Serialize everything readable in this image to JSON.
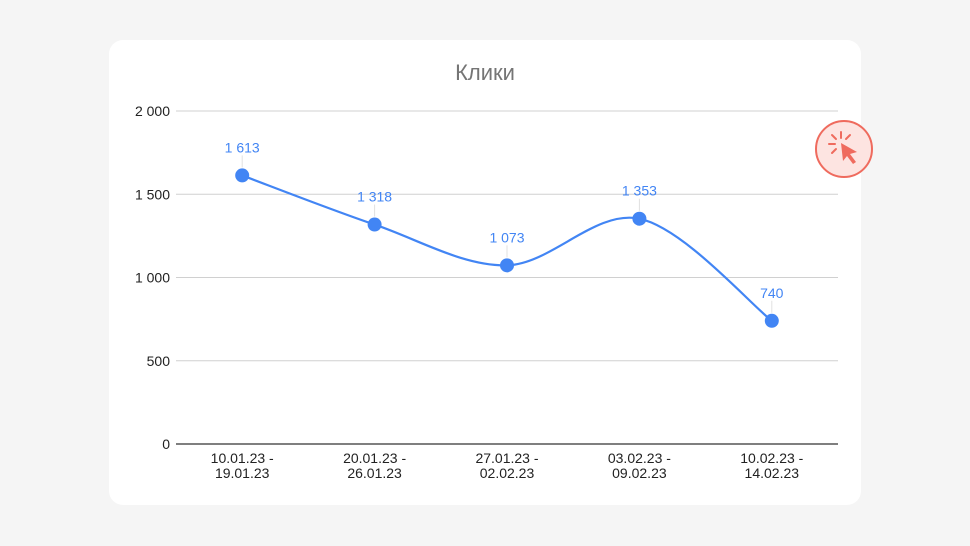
{
  "chart_data": {
    "type": "line",
    "title": "Клики",
    "xlabel": "",
    "ylabel": "",
    "categories": [
      [
        "10.01.23 -",
        "19.01.23"
      ],
      [
        "20.01.23 -",
        "26.01.23"
      ],
      [
        "27.01.23 -",
        "02.02.23"
      ],
      [
        "03.02.23 -",
        "09.02.23"
      ],
      [
        "10.02.23 -",
        "14.02.23"
      ]
    ],
    "values": [
      1613,
      1318,
      1073,
      1353,
      740
    ],
    "data_labels": [
      "1 613",
      "1 318",
      "1 073",
      "1 353",
      "740"
    ],
    "yticks": [
      0,
      500,
      1000,
      1500,
      2000
    ],
    "ytick_labels": [
      "0",
      "500",
      "1 000",
      "1 500",
      "2 000"
    ],
    "ylim": [
      0,
      2000
    ],
    "grid": true,
    "legend": "none",
    "line_color": "#4285f4",
    "smooth": true
  },
  "badge": {
    "icon": "cursor-click-icon",
    "color": "#ef6b5e"
  }
}
